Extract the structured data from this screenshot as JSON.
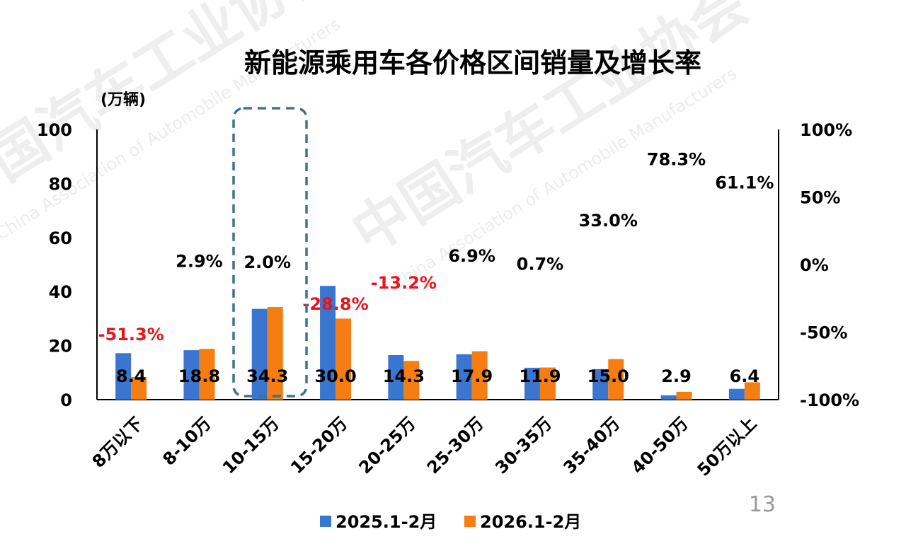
{
  "colors": {
    "series_2025": "#3a75d0",
    "series_2026": "#f57d12",
    "growth_positive": "#000000",
    "growth_negative": "#e8141b",
    "highlight_box": "#3c7494",
    "page_number": "#999999"
  },
  "watermark": {
    "line1": "中国汽车工业协会",
    "line2": "China Association of Automobile Manufacturers"
  },
  "page_number": "13",
  "chart_data": {
    "type": "bar",
    "title": "新能源乘用车各价格区间销量及增长率",
    "ylabel": "(万辆)",
    "y_unit_label": "(万辆)",
    "ylim": [
      0,
      100
    ],
    "y_ticks": [
      "0",
      "20",
      "40",
      "60",
      "80",
      "100"
    ],
    "y2lim": [
      -100,
      100
    ],
    "y2_ticks": [
      "-100%",
      "-50%",
      "0%",
      "50%",
      "100%"
    ],
    "grid": false,
    "legend_position": "bottom",
    "categories": [
      "8万以下",
      "8-10万",
      "10-15万",
      "15-20万",
      "20-25万",
      "25-30万",
      "30-35万",
      "35-40万",
      "40-50万",
      "50万以上"
    ],
    "series": [
      {
        "name": "2025.1-2月",
        "values": [
          17.2,
          18.3,
          33.6,
          42.1,
          16.5,
          16.8,
          11.8,
          11.3,
          1.6,
          4.0
        ]
      },
      {
        "name": "2026.1-2月",
        "values": [
          8.4,
          18.8,
          34.3,
          30.0,
          14.3,
          17.9,
          11.9,
          15.0,
          2.9,
          6.4
        ]
      }
    ],
    "value_labels": [
      "8.4",
      "18.8",
      "34.3",
      "30.0",
      "14.3",
      "17.9",
      "11.9",
      "15.0",
      "2.9",
      "6.4"
    ],
    "growth_rate": [
      -51.3,
      2.9,
      2.0,
      -28.8,
      -13.2,
      6.9,
      0.7,
      33.0,
      78.3,
      61.1
    ],
    "growth_labels": [
      "-51.3%",
      "2.9%",
      "2.0%",
      "-28.8%",
      "-13.2%",
      "6.9%",
      "0.7%",
      "33.0%",
      "78.3%",
      "61.1%"
    ],
    "highlighted_category": "10-15万"
  }
}
